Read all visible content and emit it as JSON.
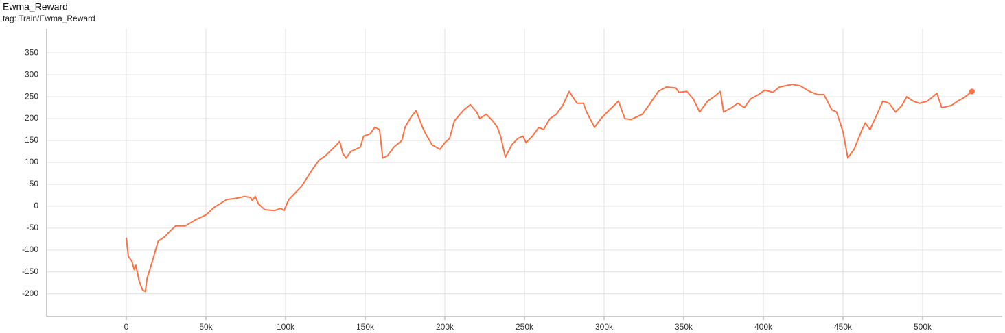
{
  "chart_data": {
    "type": "line",
    "title": "Ewma_Reward",
    "subtitle": "tag: Train/Ewma_Reward",
    "x": [
      0,
      1300,
      3400,
      5000,
      6000,
      8000,
      10000,
      12000,
      13000,
      16000,
      20000,
      24000,
      28000,
      31000,
      37000,
      44000,
      50000,
      55000,
      63000,
      69000,
      74000,
      78000,
      79000,
      81000,
      83000,
      87000,
      93000,
      97000,
      99000,
      102000,
      110000,
      117000,
      121000,
      125000,
      132000,
      134000,
      136000,
      138000,
      141000,
      147000,
      149000,
      153000,
      156000,
      159000,
      161000,
      164000,
      168000,
      173000,
      175000,
      179000,
      182000,
      186000,
      188000,
      192000,
      197000,
      200000,
      203000,
      206000,
      212000,
      216000,
      220000,
      222000,
      226000,
      230000,
      233000,
      235000,
      238000,
      242000,
      246000,
      249000,
      251000,
      255000,
      259000,
      262000,
      266000,
      270000,
      274000,
      278000,
      283000,
      287000,
      289000,
      294000,
      298000,
      302000,
      309000,
      311000,
      313000,
      317000,
      324000,
      328000,
      334000,
      339000,
      345000,
      347000,
      352000,
      356000,
      360000,
      365000,
      369000,
      373000,
      375000,
      380000,
      384000,
      388000,
      392000,
      397000,
      401000,
      406000,
      410000,
      418000,
      423000,
      429000,
      434000,
      438000,
      443000,
      446000,
      450000,
      453000,
      457000,
      462000,
      464000,
      467000,
      472000,
      475000,
      479000,
      483000,
      487000,
      490000,
      494000,
      498000,
      503000,
      509000,
      512000,
      518000,
      522000,
      526000,
      531000
    ],
    "series": [
      {
        "color": "#ff7043",
        "values": [
          -72,
          -115,
          -125,
          -145,
          -135,
          -170,
          -190,
          -195,
          -165,
          -130,
          -80,
          -70,
          -55,
          -45,
          -45,
          -30,
          -20,
          -3,
          15,
          18,
          22,
          20,
          13,
          22,
          5,
          -8,
          -10,
          -5,
          -10,
          15,
          45,
          85,
          105,
          115,
          140,
          148,
          120,
          110,
          125,
          135,
          160,
          165,
          180,
          175,
          110,
          115,
          135,
          150,
          180,
          205,
          218,
          180,
          165,
          140,
          130,
          145,
          155,
          195,
          220,
          232,
          215,
          200,
          210,
          195,
          180,
          160,
          112,
          140,
          155,
          160,
          145,
          160,
          180,
          175,
          200,
          210,
          230,
          262,
          235,
          235,
          215,
          180,
          200,
          215,
          240,
          220,
          200,
          198,
          210,
          230,
          262,
          272,
          270,
          260,
          262,
          245,
          215,
          240,
          250,
          262,
          215,
          225,
          235,
          225,
          245,
          255,
          265,
          260,
          272,
          278,
          275,
          262,
          255,
          255,
          220,
          215,
          170,
          110,
          130,
          175,
          190,
          175,
          215,
          240,
          235,
          215,
          230,
          250,
          240,
          235,
          240,
          258,
          225,
          230,
          240,
          248,
          262
        ]
      }
    ],
    "xlim": [
      -50000,
      550000
    ],
    "ylim": [
      -252,
      405
    ],
    "xticks": [
      {
        "value": 0,
        "label": "0"
      },
      {
        "value": 50000,
        "label": "50k"
      },
      {
        "value": 100000,
        "label": "100k"
      },
      {
        "value": 150000,
        "label": "150k"
      },
      {
        "value": 200000,
        "label": "200k"
      },
      {
        "value": 250000,
        "label": "250k"
      },
      {
        "value": 300000,
        "label": "300k"
      },
      {
        "value": 350000,
        "label": "350k"
      },
      {
        "value": 400000,
        "label": "400k"
      },
      {
        "value": 450000,
        "label": "450k"
      },
      {
        "value": 500000,
        "label": "500k"
      }
    ],
    "yticks": [
      -200,
      -150,
      -100,
      -50,
      0,
      50,
      100,
      150,
      200,
      250,
      300,
      350
    ],
    "grid": true
  }
}
